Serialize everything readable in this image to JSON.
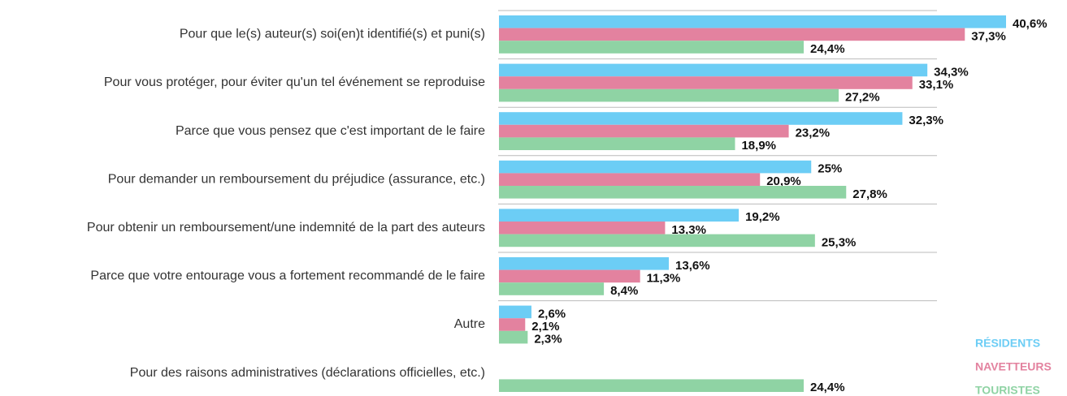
{
  "chart_data": {
    "type": "bar",
    "orientation": "horizontal",
    "categories": [
      "Pour que le(s) auteur(s) soi(en)t identifié(s) et puni(s)",
      "Pour vous protéger, pour éviter qu'un tel événement se reproduise",
      "Parce que vous pensez que c'est important de le faire",
      "Pour demander un remboursement du préjudice (assurance, etc.)",
      "Pour obtenir un remboursement/une indemnité de la part des auteurs",
      "Parce que votre entourage vous a fortement recommandé de le faire",
      "Autre",
      "Pour des raisons administratives (déclarations officielles, etc.)"
    ],
    "series": [
      {
        "name": "RÉSIDENTS",
        "color": "#6ccdf5",
        "values": [
          40.6,
          34.3,
          32.3,
          25,
          19.2,
          13.6,
          2.6,
          null
        ],
        "value_labels": [
          "40,6%",
          "34,3%",
          "32,3%",
          "25%",
          "19,2%",
          "13,6%",
          "2,6%",
          null
        ]
      },
      {
        "name": "NAVETTEURS",
        "color": "#e3829f",
        "values": [
          37.3,
          33.1,
          23.2,
          20.9,
          13.3,
          11.3,
          2.1,
          null
        ],
        "value_labels": [
          "37,3%",
          "33,1%",
          "23,2%",
          "20,9%",
          "13,3%",
          "11,3%",
          "2,1%",
          null
        ]
      },
      {
        "name": "TOURISTES",
        "color": "#8fd3a4",
        "values": [
          24.4,
          27.2,
          18.9,
          27.8,
          25.3,
          8.4,
          2.3,
          24.4
        ],
        "value_labels": [
          "24,4%",
          "27,2%",
          "18,9%",
          "27,8%",
          "25,3%",
          "8,4%",
          "2,3%",
          "24,4%"
        ]
      }
    ],
    "legend": "bottom-right"
  }
}
